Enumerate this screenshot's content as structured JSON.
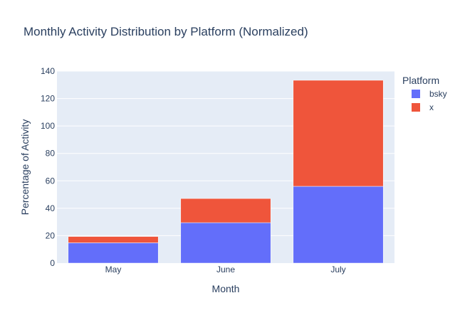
{
  "chart_data": {
    "type": "bar",
    "stacked": true,
    "title": "Monthly Activity Distribution by Platform (Normalized)",
    "xlabel": "Month",
    "ylabel": "Percentage of Activity",
    "categories": [
      "May",
      "June",
      "July"
    ],
    "series": [
      {
        "name": "bsky",
        "values": [
          14.8,
          29.5,
          56.0
        ],
        "color": "#636efa"
      },
      {
        "name": "x",
        "values": [
          4.6,
          17.6,
          77.3
        ],
        "color": "#ef553b"
      }
    ],
    "ylim": [
      0,
      140
    ],
    "yticks": [
      0,
      20,
      40,
      60,
      80,
      100,
      120,
      140
    ],
    "grid": true,
    "legend": {
      "title": "Platform",
      "placement": "top-right"
    },
    "colors": {
      "plot_bg": "#e5ecf6",
      "grid": "#ffffff",
      "text": "#2a3f5f"
    }
  }
}
